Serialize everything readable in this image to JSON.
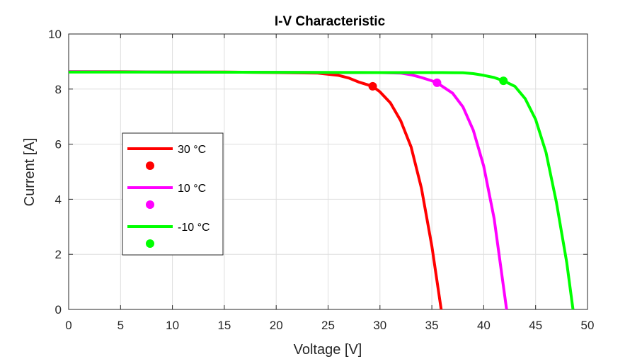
{
  "chart_data": {
    "type": "line",
    "title": "I-V Characteristic",
    "xlabel": "Voltage [V]",
    "ylabel": "Current [A]",
    "xlim": [
      0,
      50
    ],
    "ylim": [
      0,
      10
    ],
    "xticks": [
      0,
      5,
      10,
      15,
      20,
      25,
      30,
      35,
      40,
      45,
      50
    ],
    "yticks": [
      0,
      2,
      4,
      6,
      8,
      10
    ],
    "grid": true,
    "legend_position": "center-left",
    "series": [
      {
        "name": "30 °C",
        "color": "#ff0000",
        "x": [
          0,
          5,
          10,
          15,
          20,
          24,
          26,
          27,
          28,
          29.3,
          30,
          31,
          32,
          33,
          34,
          35,
          35.9
        ],
        "y": [
          8.63,
          8.63,
          8.62,
          8.62,
          8.6,
          8.58,
          8.5,
          8.4,
          8.25,
          8.1,
          7.9,
          7.5,
          6.85,
          5.9,
          4.4,
          2.3,
          0
        ]
      },
      {
        "name": "10 °C",
        "color": "#ff00ff",
        "x": [
          0,
          10,
          20,
          25,
          30,
          32,
          33,
          34,
          35,
          35.5,
          37,
          38,
          39,
          40,
          41,
          42.2
        ],
        "y": [
          8.63,
          8.62,
          8.61,
          8.6,
          8.6,
          8.58,
          8.52,
          8.42,
          8.3,
          8.23,
          7.85,
          7.35,
          6.5,
          5.2,
          3.3,
          0
        ]
      },
      {
        "name": "-10 °C",
        "color": "#00ff00",
        "x": [
          0,
          10,
          20,
          30,
          36,
          38,
          39,
          40,
          41,
          41.9,
          43,
          44,
          45,
          46,
          47,
          48,
          48.6
        ],
        "y": [
          8.62,
          8.62,
          8.61,
          8.6,
          8.6,
          8.59,
          8.56,
          8.5,
          8.42,
          8.3,
          8.1,
          7.65,
          6.9,
          5.7,
          3.9,
          1.7,
          0
        ]
      }
    ],
    "markers": [
      {
        "series": "30 °C",
        "x": 29.3,
        "y": 8.1,
        "color": "#ff0000"
      },
      {
        "series": "10 °C",
        "x": 35.5,
        "y": 8.23,
        "color": "#ff00ff"
      },
      {
        "series": "-10 °C",
        "x": 41.9,
        "y": 8.3,
        "color": "#00ff00"
      }
    ]
  }
}
